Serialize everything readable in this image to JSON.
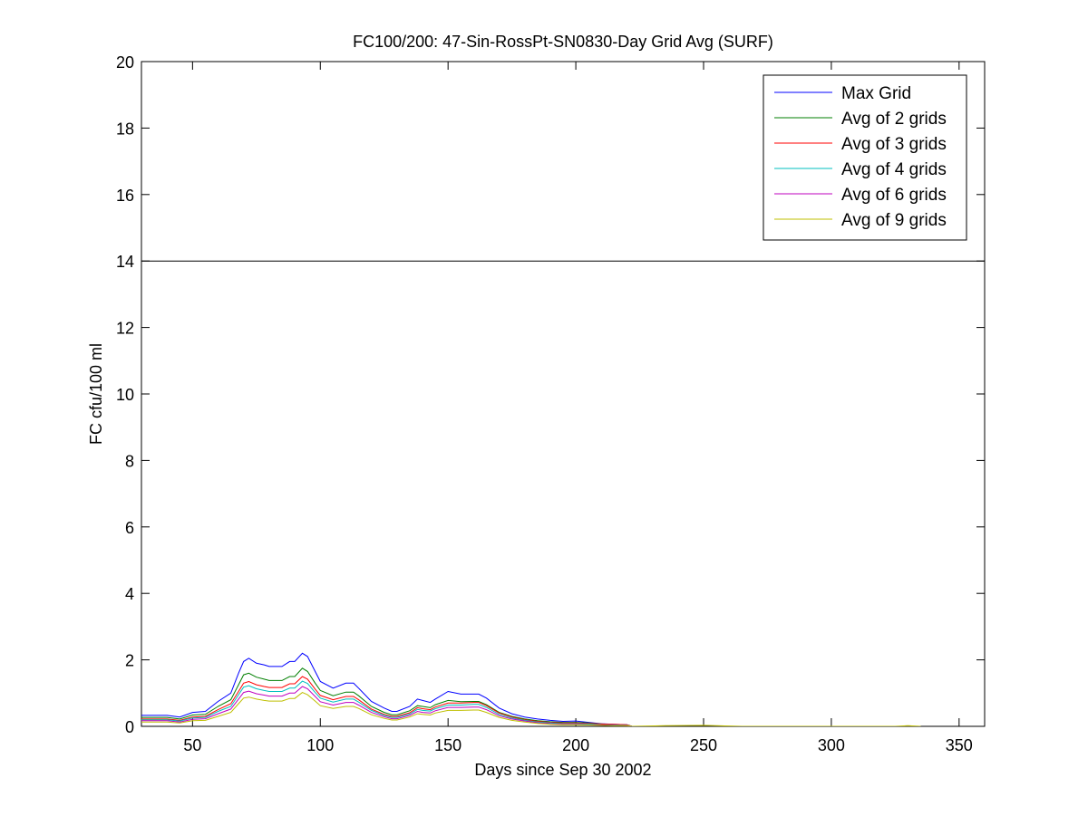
{
  "chart_data": {
    "type": "line",
    "title": "FC100/200: 47-Sin-RossPt-SN0830-Day Grid Avg (SURF)",
    "xlabel": "Days since Sep 30 2002",
    "ylabel": "FC cfu/100 ml",
    "xlim": [
      30,
      360
    ],
    "ylim": [
      0,
      20
    ],
    "xticks": [
      50,
      100,
      150,
      200,
      250,
      300,
      350
    ],
    "yticks": [
      0,
      2,
      4,
      6,
      8,
      10,
      12,
      14,
      16,
      18,
      20
    ],
    "grid": false,
    "legend_position": "top-right",
    "reference_line": {
      "y": 14,
      "color": "#000000"
    },
    "series": [
      {
        "name": "Max Grid",
        "color": "#0000ff",
        "x": [
          30,
          40,
          45,
          50,
          55,
          60,
          65,
          68,
          70,
          72,
          75,
          78,
          80,
          85,
          88,
          90,
          93,
          95,
          98,
          100,
          105,
          110,
          113,
          115,
          120,
          125,
          128,
          130,
          135,
          138,
          140,
          143,
          145,
          150,
          155,
          160,
          162,
          165,
          170,
          175,
          180,
          185,
          190,
          195,
          200,
          205,
          210,
          215,
          220,
          222
        ],
        "y": [
          0.33,
          0.33,
          0.28,
          0.42,
          0.45,
          0.75,
          1.0,
          1.6,
          1.95,
          2.05,
          1.9,
          1.85,
          1.8,
          1.8,
          1.95,
          1.95,
          2.2,
          2.1,
          1.65,
          1.35,
          1.15,
          1.3,
          1.3,
          1.15,
          0.75,
          0.55,
          0.45,
          0.45,
          0.6,
          0.82,
          0.78,
          0.72,
          0.82,
          1.05,
          0.97,
          0.97,
          0.97,
          0.85,
          0.55,
          0.38,
          0.28,
          0.22,
          0.18,
          0.15,
          0.16,
          0.12,
          0.08,
          0.06,
          0.05,
          0.0
        ]
      },
      {
        "name": "Avg of 2 grids",
        "color": "#007f00",
        "x": [
          30,
          40,
          45,
          50,
          55,
          60,
          65,
          68,
          70,
          72,
          75,
          78,
          80,
          85,
          88,
          90,
          93,
          95,
          98,
          100,
          105,
          110,
          113,
          115,
          120,
          125,
          128,
          130,
          135,
          138,
          140,
          143,
          145,
          150,
          155,
          160,
          162,
          165,
          170,
          175,
          180,
          185,
          190,
          195,
          200,
          205,
          210,
          215,
          220,
          222
        ],
        "y": [
          0.27,
          0.27,
          0.22,
          0.34,
          0.36,
          0.6,
          0.8,
          1.25,
          1.55,
          1.6,
          1.48,
          1.42,
          1.38,
          1.38,
          1.5,
          1.5,
          1.75,
          1.65,
          1.3,
          1.08,
          0.92,
          1.03,
          1.03,
          0.92,
          0.6,
          0.42,
          0.35,
          0.35,
          0.47,
          0.62,
          0.6,
          0.56,
          0.65,
          0.78,
          0.74,
          0.75,
          0.75,
          0.65,
          0.42,
          0.3,
          0.22,
          0.17,
          0.14,
          0.12,
          0.12,
          0.1,
          0.07,
          0.05,
          0.04,
          0.0
        ]
      },
      {
        "name": "Avg of 3 grids",
        "color": "#ff0000",
        "x": [
          30,
          40,
          45,
          50,
          55,
          60,
          65,
          68,
          70,
          72,
          75,
          78,
          80,
          85,
          88,
          90,
          93,
          95,
          98,
          100,
          105,
          110,
          113,
          115,
          120,
          125,
          128,
          130,
          135,
          138,
          140,
          143,
          145,
          150,
          155,
          160,
          162,
          165,
          170,
          175,
          180,
          185,
          190,
          195,
          200,
          205,
          210,
          215,
          220,
          222
        ],
        "y": [
          0.22,
          0.22,
          0.18,
          0.28,
          0.3,
          0.5,
          0.68,
          1.05,
          1.3,
          1.35,
          1.25,
          1.2,
          1.17,
          1.17,
          1.28,
          1.28,
          1.5,
          1.42,
          1.12,
          0.93,
          0.8,
          0.9,
          0.9,
          0.8,
          0.52,
          0.36,
          0.3,
          0.3,
          0.41,
          0.56,
          0.53,
          0.5,
          0.58,
          0.7,
          0.7,
          0.72,
          0.72,
          0.62,
          0.4,
          0.28,
          0.2,
          0.15,
          0.12,
          0.1,
          0.1,
          0.09,
          0.07,
          0.06,
          0.05,
          0.0
        ]
      },
      {
        "name": "Avg of 4 grids",
        "color": "#00bfbf",
        "x": [
          30,
          40,
          45,
          50,
          55,
          60,
          65,
          68,
          70,
          72,
          75,
          78,
          80,
          85,
          88,
          90,
          93,
          95,
          98,
          100,
          105,
          110,
          113,
          115,
          120,
          125,
          128,
          130,
          135,
          138,
          140,
          143,
          145,
          150,
          155,
          160,
          162,
          165,
          170,
          175,
          180,
          185,
          190,
          195,
          200,
          205,
          210,
          215,
          220,
          222
        ],
        "y": [
          0.2,
          0.2,
          0.16,
          0.25,
          0.27,
          0.45,
          0.6,
          0.95,
          1.18,
          1.22,
          1.13,
          1.08,
          1.05,
          1.05,
          1.15,
          1.15,
          1.36,
          1.29,
          1.02,
          0.85,
          0.73,
          0.82,
          0.82,
          0.73,
          0.48,
          0.33,
          0.27,
          0.27,
          0.37,
          0.51,
          0.48,
          0.46,
          0.53,
          0.64,
          0.64,
          0.66,
          0.66,
          0.57,
          0.36,
          0.25,
          0.18,
          0.13,
          0.1,
          0.08,
          0.08,
          0.07,
          0.05,
          0.04,
          0.03,
          0.0
        ]
      },
      {
        "name": "Avg of 6 grids",
        "color": "#bf00bf",
        "x": [
          30,
          40,
          45,
          50,
          55,
          60,
          65,
          68,
          70,
          72,
          75,
          78,
          80,
          85,
          88,
          90,
          93,
          95,
          98,
          100,
          105,
          110,
          113,
          115,
          120,
          125,
          128,
          130,
          135,
          138,
          140,
          143,
          145,
          150,
          155,
          160,
          162,
          165,
          170,
          175,
          180,
          185,
          190,
          195,
          200,
          205,
          210,
          215,
          220,
          222
        ],
        "y": [
          0.17,
          0.17,
          0.13,
          0.21,
          0.23,
          0.38,
          0.52,
          0.82,
          1.02,
          1.06,
          0.98,
          0.94,
          0.91,
          0.91,
          1.0,
          1.0,
          1.2,
          1.13,
          0.9,
          0.74,
          0.64,
          0.72,
          0.72,
          0.64,
          0.42,
          0.29,
          0.23,
          0.23,
          0.33,
          0.45,
          0.42,
          0.4,
          0.47,
          0.57,
          0.57,
          0.58,
          0.58,
          0.5,
          0.32,
          0.22,
          0.16,
          0.11,
          0.08,
          0.06,
          0.06,
          0.05,
          0.04,
          0.03,
          0.02,
          0.0
        ]
      },
      {
        "name": "Avg of 9 grids",
        "color": "#bfbf00",
        "x": [
          30,
          40,
          45,
          50,
          55,
          60,
          65,
          68,
          70,
          72,
          75,
          78,
          80,
          85,
          88,
          90,
          93,
          95,
          98,
          100,
          105,
          110,
          113,
          115,
          120,
          125,
          128,
          130,
          135,
          138,
          140,
          143,
          145,
          150,
          155,
          160,
          162,
          165,
          170,
          175,
          180,
          185,
          190,
          195,
          200,
          205,
          210,
          215,
          220,
          222,
          235,
          250,
          265,
          325,
          330,
          335
        ],
        "y": [
          0.13,
          0.13,
          0.1,
          0.17,
          0.18,
          0.3,
          0.42,
          0.68,
          0.85,
          0.88,
          0.82,
          0.78,
          0.76,
          0.76,
          0.84,
          0.84,
          1.02,
          0.95,
          0.76,
          0.62,
          0.54,
          0.6,
          0.6,
          0.54,
          0.35,
          0.24,
          0.19,
          0.19,
          0.28,
          0.38,
          0.36,
          0.34,
          0.4,
          0.48,
          0.48,
          0.49,
          0.49,
          0.42,
          0.27,
          0.18,
          0.13,
          0.09,
          0.06,
          0.05,
          0.05,
          0.04,
          0.03,
          0.02,
          0.02,
          0.0,
          0.02,
          0.03,
          0.0,
          0.0,
          0.02,
          0.0
        ]
      }
    ]
  }
}
